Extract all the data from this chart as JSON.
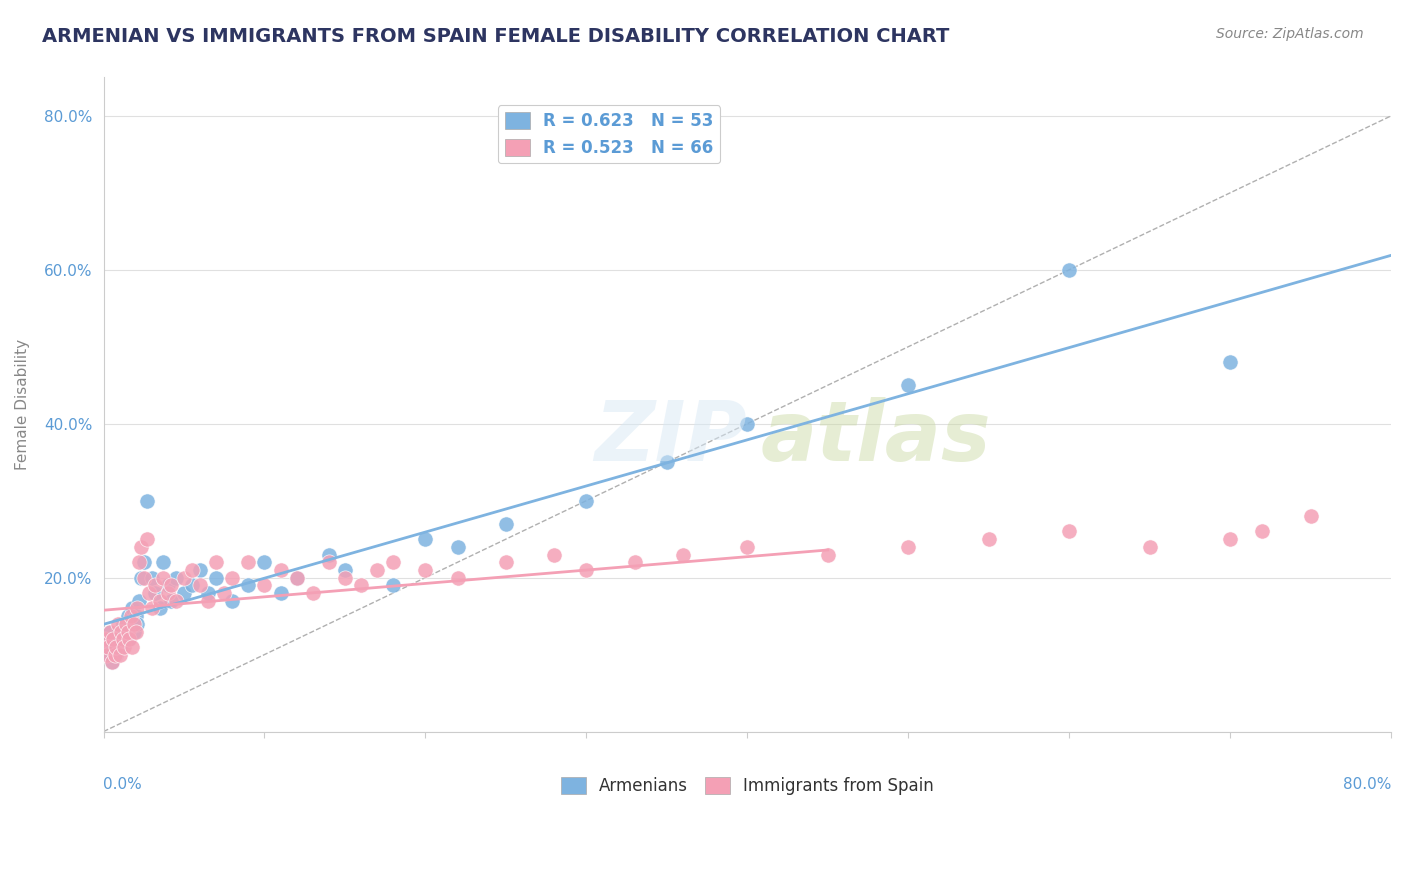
{
  "title": "ARMENIAN VS IMMIGRANTS FROM SPAIN FEMALE DISABILITY CORRELATION CHART",
  "source": "Source: ZipAtlas.com",
  "ylabel": "Female Disability",
  "r_armenian": 0.623,
  "n_armenian": 53,
  "r_spain": 0.523,
  "n_spain": 66,
  "blue_color": "#7eb3e0",
  "pink_color": "#f4a0b5",
  "legend_blue_label": "Armenians",
  "legend_pink_label": "Immigrants from Spain",
  "title_color": "#2d3561",
  "axis_label_color": "#5b9bd5",
  "armenian_x": [
    0.001,
    0.002,
    0.003,
    0.004,
    0.005,
    0.006,
    0.007,
    0.008,
    0.009,
    0.01,
    0.01,
    0.012,
    0.013,
    0.015,
    0.016,
    0.017,
    0.018,
    0.019,
    0.02,
    0.021,
    0.022,
    0.023,
    0.025,
    0.027,
    0.03,
    0.032,
    0.035,
    0.037,
    0.04,
    0.042,
    0.045,
    0.05,
    0.055,
    0.06,
    0.065,
    0.07,
    0.08,
    0.09,
    0.1,
    0.11,
    0.12,
    0.14,
    0.15,
    0.18,
    0.2,
    0.22,
    0.25,
    0.3,
    0.35,
    0.4,
    0.5,
    0.6,
    0.7
  ],
  "armenian_y": [
    0.12,
    0.11,
    0.1,
    0.13,
    0.09,
    0.11,
    0.12,
    0.1,
    0.13,
    0.11,
    0.12,
    0.14,
    0.13,
    0.15,
    0.12,
    0.14,
    0.16,
    0.13,
    0.15,
    0.14,
    0.17,
    0.2,
    0.22,
    0.3,
    0.2,
    0.18,
    0.16,
    0.22,
    0.19,
    0.17,
    0.2,
    0.18,
    0.19,
    0.21,
    0.18,
    0.2,
    0.17,
    0.19,
    0.22,
    0.18,
    0.2,
    0.23,
    0.21,
    0.19,
    0.25,
    0.24,
    0.27,
    0.3,
    0.35,
    0.4,
    0.45,
    0.6,
    0.48
  ],
  "spain_x": [
    0.001,
    0.002,
    0.003,
    0.004,
    0.005,
    0.006,
    0.007,
    0.008,
    0.009,
    0.01,
    0.011,
    0.012,
    0.013,
    0.014,
    0.015,
    0.016,
    0.017,
    0.018,
    0.019,
    0.02,
    0.021,
    0.022,
    0.023,
    0.025,
    0.027,
    0.028,
    0.03,
    0.032,
    0.035,
    0.037,
    0.04,
    0.042,
    0.045,
    0.05,
    0.055,
    0.06,
    0.065,
    0.07,
    0.075,
    0.08,
    0.09,
    0.1,
    0.11,
    0.12,
    0.13,
    0.14,
    0.15,
    0.16,
    0.17,
    0.18,
    0.2,
    0.22,
    0.25,
    0.28,
    0.3,
    0.33,
    0.36,
    0.4,
    0.45,
    0.5,
    0.55,
    0.6,
    0.65,
    0.7,
    0.72,
    0.75
  ],
  "spain_y": [
    0.12,
    0.1,
    0.11,
    0.13,
    0.09,
    0.12,
    0.1,
    0.11,
    0.14,
    0.1,
    0.13,
    0.12,
    0.11,
    0.14,
    0.13,
    0.12,
    0.15,
    0.11,
    0.14,
    0.13,
    0.16,
    0.22,
    0.24,
    0.2,
    0.25,
    0.18,
    0.16,
    0.19,
    0.17,
    0.2,
    0.18,
    0.19,
    0.17,
    0.2,
    0.21,
    0.19,
    0.17,
    0.22,
    0.18,
    0.2,
    0.22,
    0.19,
    0.21,
    0.2,
    0.18,
    0.22,
    0.2,
    0.19,
    0.21,
    0.22,
    0.21,
    0.2,
    0.22,
    0.23,
    0.21,
    0.22,
    0.23,
    0.24,
    0.23,
    0.24,
    0.25,
    0.26,
    0.24,
    0.25,
    0.26,
    0.28
  ],
  "xlim": [
    0.0,
    0.8
  ],
  "ylim": [
    0.0,
    0.85
  ],
  "ytick_positions": [
    0.0,
    0.2,
    0.4,
    0.6,
    0.8
  ],
  "ytick_labels": [
    "",
    "20.0%",
    "40.0%",
    "60.0%",
    "80.0%"
  ],
  "background_color": "#ffffff",
  "grid_color": "#e0e0e0"
}
